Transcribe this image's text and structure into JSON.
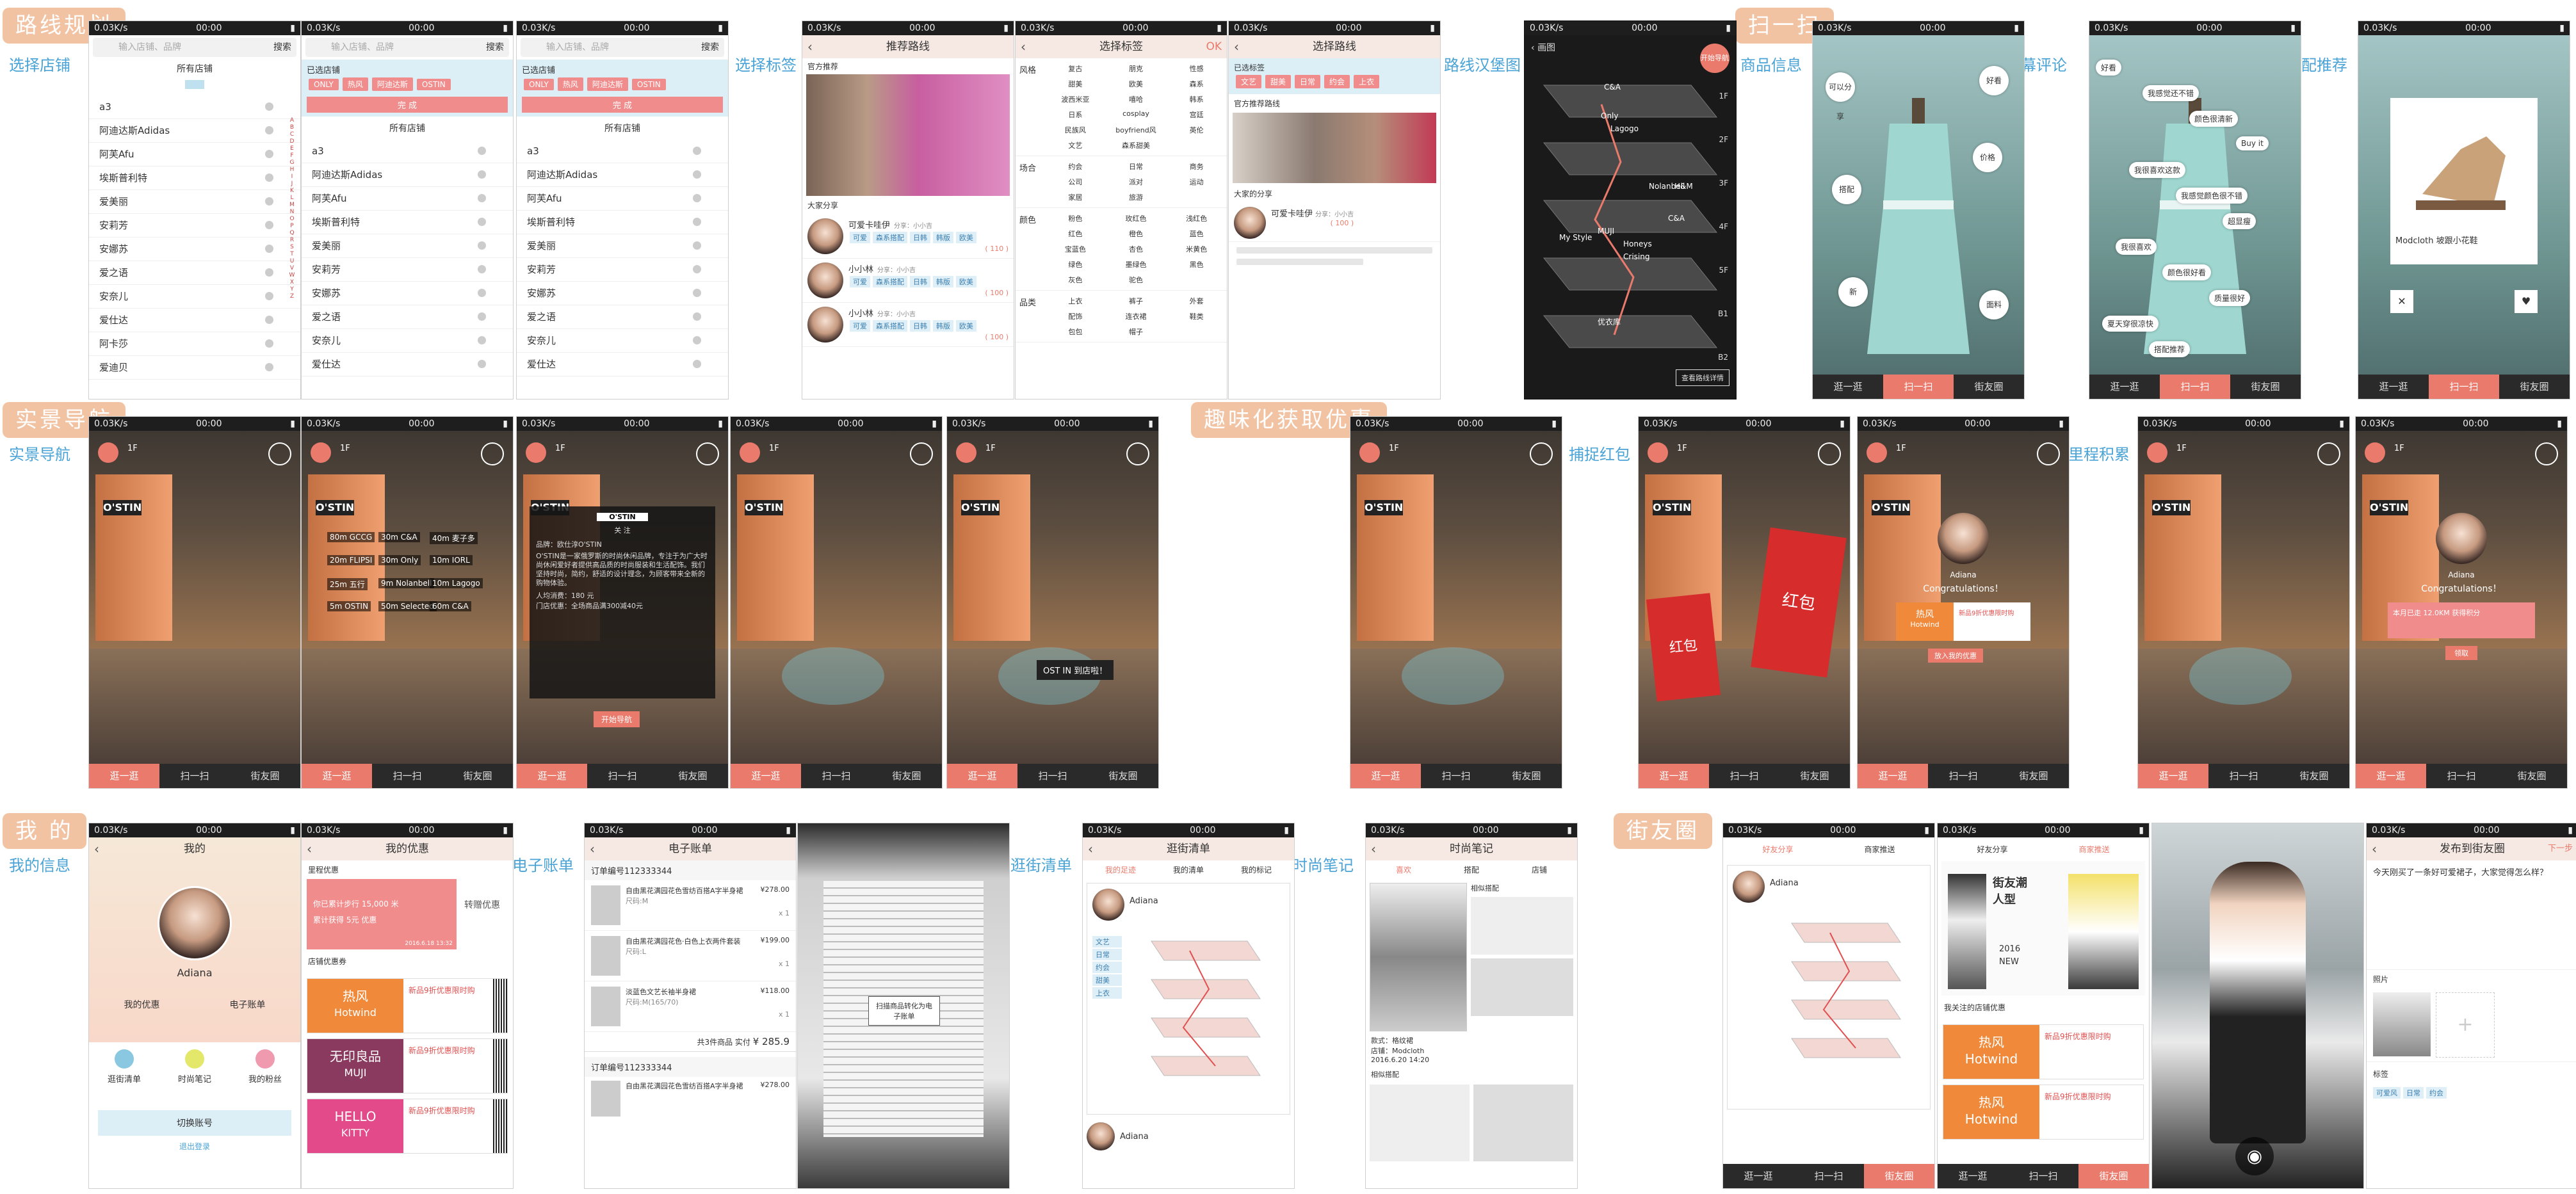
{
  "section_titles": {
    "route": "路线规划",
    "scan": "扫一扫",
    "realnav": "实景导航",
    "fun": "趣味化获取优惠",
    "mine": "我 的",
    "friends": "街友圈"
  },
  "side_labels": {
    "select_store": "选择店铺",
    "select_tag": "选择标签",
    "route_map": "路线汉堡图",
    "product_info": "商品信息",
    "bullet_comment": "弹幕评论",
    "match_rec": "搭配推荐",
    "real_nav": "实景导航",
    "catch_redpack": "捕捉红包",
    "mileage": "里程积累",
    "my_info": "我的信息",
    "e_bill": "电子账单",
    "stroll_list": "逛街清单",
    "fashion_notes": "时尚笔记"
  },
  "status": {
    "net": "0.03K/s",
    "time": "00:00"
  },
  "stores": {
    "search_placeholder": "输入店铺、品牌",
    "search_btn": "搜索",
    "all_stores": "所有店铺",
    "selected_stores": "已选店铺",
    "done": "完 成",
    "items": [
      "a3",
      "阿迪达斯Adidas",
      "阿芙Afu",
      "埃斯普利特",
      "爱美丽",
      "安莉芳",
      "安娜苏",
      "爱之语",
      "安奈儿",
      "爱仕达",
      "阿卡莎",
      "爱迪贝"
    ],
    "chosen": [
      "ONLY",
      "热风",
      "阿迪达斯",
      "OSTIN"
    ],
    "alpha": [
      "A",
      "B",
      "C",
      "D",
      "E",
      "F",
      "G",
      "H",
      "I",
      "J",
      "K",
      "L",
      "M",
      "N",
      "O",
      "P",
      "Q",
      "R",
      "S",
      "T",
      "U",
      "V",
      "W",
      "X",
      "Y",
      "Z"
    ]
  },
  "recommend": {
    "title": "推荐路线",
    "official": "官方推荐",
    "share": "大家分享",
    "users": [
      {
        "name": "可爱卡哇伊",
        "meta": "分享：小小吉",
        "count": "( 110 )"
      },
      {
        "name": "小小林",
        "meta": "分享：小小吉",
        "count": "( 100 )"
      },
      {
        "name": "小小林",
        "meta": "分享：小小吉",
        "count": "( 100 )"
      }
    ],
    "tags": [
      "可爱",
      "森系搭配",
      "日韩",
      "韩版",
      "欧美"
    ]
  },
  "tags": {
    "title": "选择标签",
    "ok": "OK",
    "groups": [
      {
        "name": "风格",
        "items": [
          "复古",
          "朋克",
          "性感",
          "甜美",
          "欧美",
          "森系",
          "波西米亚",
          "嘻哈",
          "韩系",
          "日系",
          "cosplay",
          "宫廷",
          "民族风",
          "boyfriend风",
          "英伦",
          "文艺",
          "森系甜美",
          ""
        ]
      },
      {
        "name": "场合",
        "items": [
          "约会",
          "日常",
          "商务",
          "公司",
          "派对",
          "运动",
          "家居",
          "旅游"
        ]
      },
      {
        "name": "颜色",
        "items": [
          "粉色",
          "玫红色",
          "浅红色",
          "红色",
          "橙色",
          "蓝色",
          "宝蓝色",
          "杏色",
          "米黄色",
          "绿色",
          "墨绿色",
          "黑色",
          "灰色",
          "驼色"
        ]
      },
      {
        "name": "品类",
        "items": [
          "上衣",
          "裤子",
          "外套",
          "配饰",
          "连衣裙",
          "鞋类",
          "包包",
          "帽子"
        ]
      }
    ]
  },
  "route_detail": {
    "title": "选择路线",
    "chosen_label": "已选标签",
    "chosen": [
      "文艺",
      "甜美",
      "日常",
      "约会",
      "上衣"
    ],
    "official": "官方推荐路线",
    "share": "大家的分享",
    "user1": "可爱卡哇伊",
    "user1_meta": "分享：小小吉",
    "count": "( 100 )"
  },
  "map": {
    "title": "画图",
    "start": "开始导航",
    "floors": [
      "C&A",
      "Only",
      "Lagogo",
      "Nolanbell",
      "H&M",
      "My Style",
      "MUJI",
      "Honeys",
      "C&A",
      "Crising",
      "优衣库"
    ],
    "save": "查看路线详情",
    "floor_nums": [
      "1F",
      "2F",
      "3F",
      "4F",
      "5F",
      "B1",
      "B2"
    ]
  },
  "scan": {
    "bubbles": [
      "可以分享",
      "好看",
      "搭配",
      "价格",
      "新",
      "面料"
    ],
    "comments": [
      "好看",
      "我感觉还不错",
      "颜色很清新",
      "Buy it",
      "我很喜欢这款",
      "我感觉颜色很不错",
      "超显瘦",
      "我很喜欢",
      "颜色很好看",
      "质量很好",
      "夏天穿很凉快",
      "搭配推荐"
    ],
    "shoe_name": "Modcloth 坡跟小花鞋"
  },
  "tabs": [
    "逛一逛",
    "扫一扫",
    "街友圈"
  ],
  "realnav": {
    "floor": "1F",
    "store_sign": "O'STIN",
    "pins": [
      "80m  GCCG",
      "30m  C&A",
      "40m  麦子多",
      "20m  FLIPSI",
      "30m  Only",
      "10m  IORL",
      "25m  五行",
      "9m  Nolanbell",
      "10m  Lagogo",
      "5m  OSTIN",
      "50m  Selected",
      "60m  C&A"
    ],
    "popup_logo": "O'STIN",
    "popup_follow": "关 注",
    "popup_brand": "品牌：欧仕淳O'STIN",
    "popup_desc": "O'STIN是一家俄罗斯的时尚休闲品牌，专注于为广大时尚休闲爱好者提供高品质的时尚服装和生活配饰。我们坚持时尚，简约，舒适的设计理念，为顾客带来全新的购物体验。",
    "popup_price_label": "人均消费：",
    "popup_price": "180 元",
    "popup_promo": "门店优惠：全场商品满300减40元",
    "popup_go": "开始导航",
    "arrive": "OST IN 到店啦！"
  },
  "redpack": {
    "label": "红包",
    "congrats": "Congratulations！",
    "user": "Adiana",
    "prize_brand": "热风",
    "prize_brand_en": "Hotwind",
    "prize_text": "新品9折优惠限时购",
    "accept": "放入我的优惠",
    "mileage_text": "本月已走 12.0KM 获得积分",
    "mileage_btn": "领取"
  },
  "me": {
    "title": "我的",
    "user": "Adiana",
    "coupons_btn": "我的优惠",
    "bill_btn": "电子账单",
    "menu": [
      "逛街清单",
      "时尚笔记",
      "我的粉丝"
    ],
    "switch": "切换账号",
    "logout": "退出登录"
  },
  "my_coupons": {
    "title": "我的优惠",
    "mileage_header": "里程优惠",
    "mileage_line1": "你已累计步行 15,000 米",
    "mileage_line2": "累计获得 5元 优惠",
    "convert": "转赠优惠",
    "date": "2016.6.18  13:32",
    "store_header": "店铺优惠券",
    "list": [
      {
        "brand": "热风",
        "brand_en": "Hotwind",
        "text": "新品9折优惠限时购",
        "color": "#f08a3a"
      },
      {
        "brand": "无印良品",
        "brand_en": "MUJI",
        "text": "新品9折优惠限时购",
        "color": "#8a3a5e"
      },
      {
        "brand": "HELLO",
        "brand_en": "KITTY",
        "text": "新品9折优惠限时购",
        "color": "#e24a8a"
      }
    ]
  },
  "ebill": {
    "title": "电子账单",
    "order1": "订单编号112333344",
    "order2": "订单编号112333344",
    "items": [
      {
        "name": "自由黑花满园花色雪纺百搭A字半身裙",
        "size": "尺码:M",
        "price": "¥278.00",
        "qty": "x 1"
      },
      {
        "name": "自由黑花满园花色·白色上衣两件套装",
        "size": "尺码:L",
        "price": "¥199.00",
        "qty": "x 1"
      },
      {
        "name": "淡蓝色文艺长袖半身裙",
        "size": "尺码:M(165/70)",
        "price": "¥118.00",
        "qty": "x 1"
      }
    ],
    "total_label": "共3件商品  实付",
    "total": "¥ 285.9",
    "item4": {
      "name": "自由黑花满园花色雪纺百搭A字半身裙",
      "price": "¥278.00"
    },
    "receipt_btn": "扫描商品转化为电子账单"
  },
  "stroll": {
    "title": "逛街清单",
    "tabs": [
      "我的足迹",
      "我的清单",
      "我的标记"
    ],
    "user": "Adiana",
    "tags": [
      "文艺",
      "日常",
      "约会",
      "甜美",
      "上衣"
    ]
  },
  "notes": {
    "title": "时尚笔记",
    "tabs": [
      "喜欢",
      "搭配",
      "店铺"
    ],
    "similar": "相似搭配",
    "item1": "款式：格纹裙",
    "item2": "店铺：Modcloth",
    "date": "2016.6.20  14:20"
  },
  "friends": {
    "tabs": [
      "好友分享",
      "商家推送",
      "发布到街友"
    ],
    "user": "Adiana",
    "poster_title": "街友潮人型",
    "poster_year": "2016",
    "poster_new": "NEW",
    "followed": "我关注的店铺优惠",
    "coupon_brand": "热风",
    "coupon_en": "Hotwind",
    "coupon_text": "新品9折优惠限时购",
    "post_title": "发布到街友圈",
    "post_next": "下一步",
    "post_text": "今天刚买了一条好可爱裙子，大家觉得怎么样？",
    "post_photo": "照片",
    "post_tags": "标签",
    "post_tag_list": [
      "可爱风",
      "日常",
      "约会"
    ]
  }
}
